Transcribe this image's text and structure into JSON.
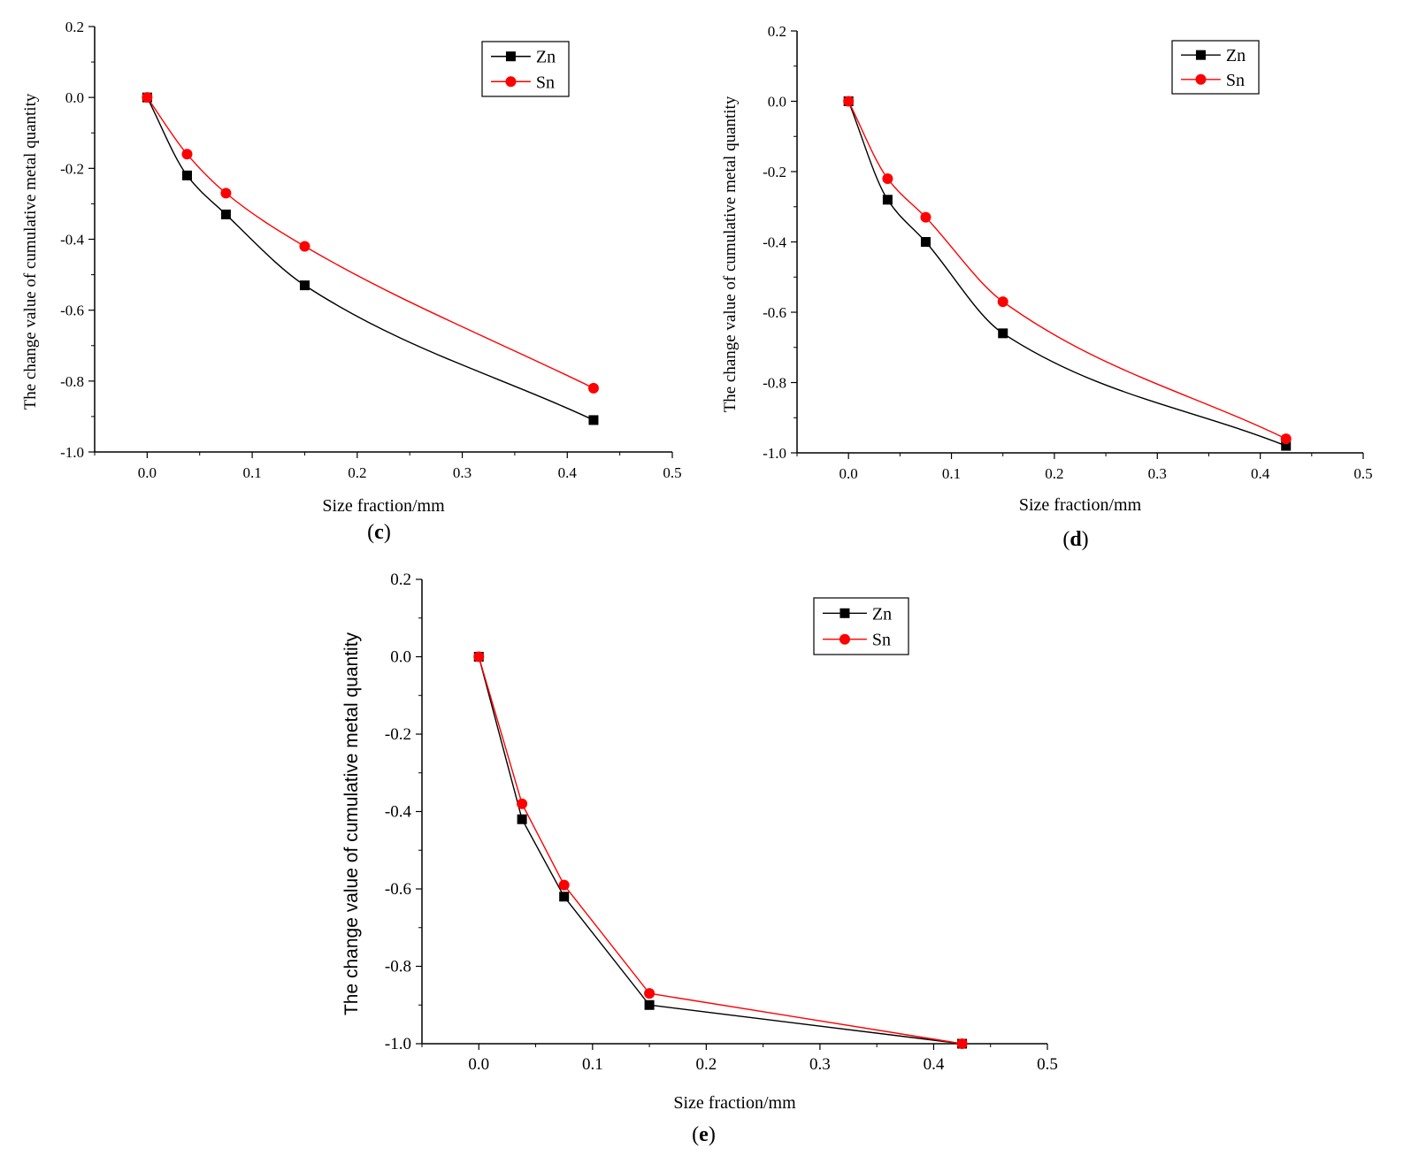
{
  "chart_data": [
    {
      "type": "line",
      "panel_label": "c",
      "xlabel": "Size fraction/mm",
      "ylabel": "The change value of cumulative metal quantity",
      "xlim": [
        -0.05,
        0.5
      ],
      "ylim": [
        -1.0,
        0.2
      ],
      "xticks": [
        0.0,
        0.1,
        0.2,
        0.3,
        0.4,
        0.5
      ],
      "xtick_labels": [
        "0.0",
        "0.1",
        "0.2",
        "0.3",
        "0.4",
        "0.5"
      ],
      "yticks": [
        0.2,
        0.0,
        -0.2,
        -0.4,
        -0.6,
        -0.8,
        -1.0
      ],
      "ytick_labels": [
        "0.2",
        "0.0",
        "-0.2",
        "-0.4",
        "-0.6",
        "-0.8",
        "-1.0"
      ],
      "legend": "top-right",
      "series": [
        {
          "name": "Zn",
          "color": "#000000",
          "marker": "square",
          "x": [
            0,
            0.038,
            0.075,
            0.15,
            0.425
          ],
          "values": [
            0,
            -0.22,
            -0.33,
            -0.53,
            -0.91
          ]
        },
        {
          "name": "Sn",
          "color": "#ff0000",
          "marker": "circle",
          "x": [
            0,
            0.038,
            0.075,
            0.15,
            0.425
          ],
          "values": [
            0,
            -0.16,
            -0.27,
            -0.42,
            -0.82
          ]
        }
      ]
    },
    {
      "type": "line",
      "panel_label": "d",
      "xlabel": "Size fraction/mm",
      "ylabel": "The change value of cumulative metal quantity",
      "xlim": [
        -0.05,
        0.5
      ],
      "ylim": [
        -1.0,
        0.2
      ],
      "xticks": [
        0.0,
        0.1,
        0.2,
        0.3,
        0.4,
        0.5
      ],
      "xtick_labels": [
        "0.0",
        "0.1",
        "0.2",
        "0.3",
        "0.4",
        "0.5"
      ],
      "yticks": [
        0.2,
        0.0,
        -0.2,
        -0.4,
        -0.6,
        -0.8,
        -1.0
      ],
      "ytick_labels": [
        "0.2",
        "0.0",
        "-0.2",
        "-0.4",
        "-0.6",
        "-0.8",
        "-1.0"
      ],
      "legend": "top-right",
      "series": [
        {
          "name": "Zn",
          "color": "#000000",
          "marker": "square",
          "x": [
            0,
            0.038,
            0.075,
            0.15,
            0.425
          ],
          "values": [
            0,
            -0.28,
            -0.4,
            -0.66,
            -0.98
          ]
        },
        {
          "name": "Sn",
          "color": "#ff0000",
          "marker": "circle",
          "x": [
            0,
            0.038,
            0.075,
            0.15,
            0.425
          ],
          "values": [
            0,
            -0.22,
            -0.33,
            -0.57,
            -0.96
          ]
        }
      ]
    },
    {
      "type": "line",
      "panel_label": "e",
      "xlabel": "Size fraction/mm",
      "ylabel": "The change value of cumulative metal quantity",
      "xlim": [
        -0.05,
        0.5
      ],
      "ylim": [
        -1.0,
        0.2
      ],
      "xticks": [
        0.0,
        0.1,
        0.2,
        0.3,
        0.4,
        0.5
      ],
      "xtick_labels": [
        "0.0",
        "0.1",
        "0.2",
        "0.3",
        "0.4",
        "0.5"
      ],
      "yticks": [
        0.2,
        0.0,
        -0.2,
        -0.4,
        -0.6,
        -0.8,
        -1.0
      ],
      "ytick_labels": [
        "0.2",
        "0.0",
        "-0.2",
        "-0.4",
        "-0.6",
        "-0.8",
        "-1.0"
      ],
      "legend": "top-right",
      "series": [
        {
          "name": "Zn",
          "color": "#000000",
          "marker": "square",
          "x": [
            0,
            0.038,
            0.075,
            0.15,
            0.425
          ],
          "values": [
            0,
            -0.42,
            -0.62,
            -0.9,
            -1.0
          ]
        },
        {
          "name": "Sn",
          "color": "#ff0000",
          "marker": "circle",
          "x": [
            0,
            0.038,
            0.075,
            0.15,
            0.425
          ],
          "values": [
            0,
            -0.38,
            -0.59,
            -0.87,
            -1.0
          ]
        }
      ]
    }
  ]
}
